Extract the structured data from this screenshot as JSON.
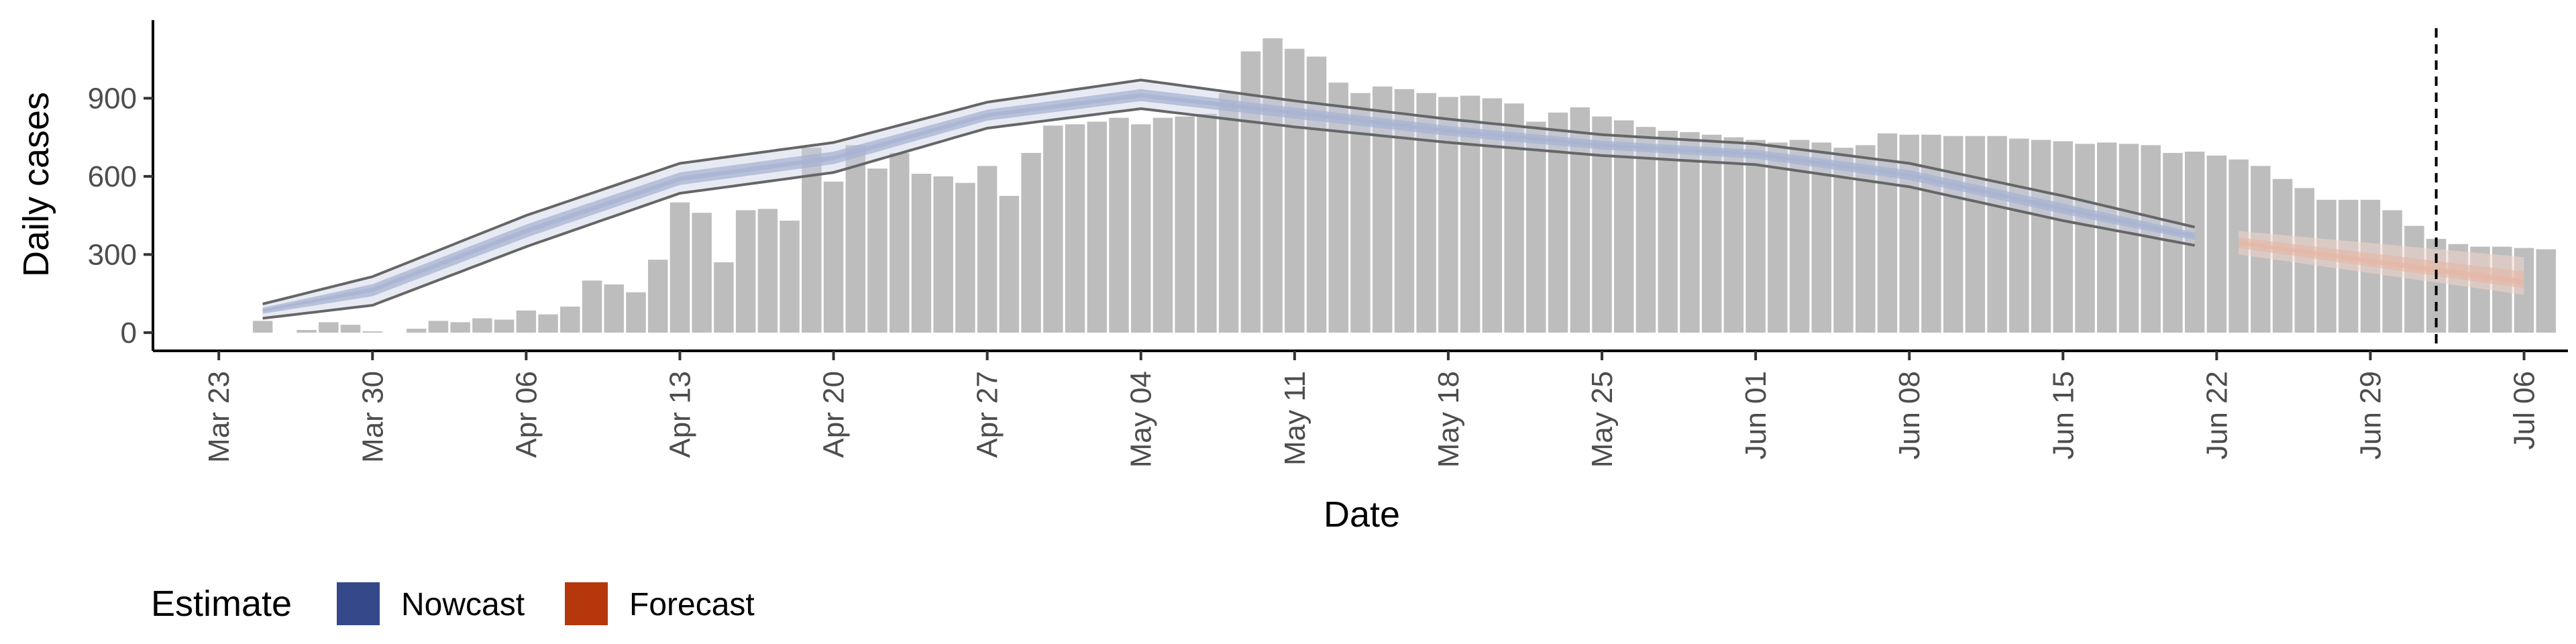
{
  "chart_data": {
    "type": "bar",
    "xlabel": "Date",
    "ylabel": "Daily cases",
    "ylim": [
      -70,
      1200
    ],
    "xlim": [
      "2020-03-20",
      "2020-07-08"
    ],
    "y_ticks": [
      0,
      300,
      600,
      900
    ],
    "x_ticks": [
      {
        "date": "2020-03-23",
        "label": "Mar 23"
      },
      {
        "date": "2020-03-30",
        "label": "Mar 30"
      },
      {
        "date": "2020-04-06",
        "label": "Apr 06"
      },
      {
        "date": "2020-04-13",
        "label": "Apr 13"
      },
      {
        "date": "2020-04-20",
        "label": "Apr 20"
      },
      {
        "date": "2020-04-27",
        "label": "Apr 27"
      },
      {
        "date": "2020-05-04",
        "label": "May 04"
      },
      {
        "date": "2020-05-11",
        "label": "May 11"
      },
      {
        "date": "2020-05-18",
        "label": "May 18"
      },
      {
        "date": "2020-05-25",
        "label": "May 25"
      },
      {
        "date": "2020-06-01",
        "label": "Jun 01"
      },
      {
        "date": "2020-06-08",
        "label": "Jun 08"
      },
      {
        "date": "2020-06-15",
        "label": "Jun 15"
      },
      {
        "date": "2020-06-22",
        "label": "Jun 22"
      },
      {
        "date": "2020-06-29",
        "label": "Jun 29"
      },
      {
        "date": "2020-07-06",
        "label": "Jul 06"
      }
    ],
    "bar_start_date": "2020-03-25",
    "reported_cases": [
      45,
      0,
      10,
      40,
      30,
      5,
      0,
      15,
      45,
      40,
      55,
      50,
      85,
      70,
      100,
      200,
      185,
      155,
      280,
      500,
      460,
      270,
      470,
      475,
      430,
      710,
      580,
      720,
      630,
      690,
      610,
      600,
      575,
      640,
      525,
      690,
      795,
      800,
      810,
      825,
      800,
      825,
      830,
      840,
      920,
      1080,
      1130,
      1090,
      1060,
      960,
      920,
      945,
      935,
      920,
      905,
      910,
      900,
      880,
      810,
      845,
      865,
      830,
      815,
      790,
      775,
      770,
      760,
      750,
      740,
      730,
      740,
      730,
      710,
      720,
      765,
      760,
      760,
      755,
      755,
      755,
      745,
      740,
      735,
      725,
      730,
      725,
      720,
      690,
      695,
      680,
      665,
      640,
      590,
      555,
      510,
      510,
      510,
      470,
      410,
      360,
      340,
      330,
      330,
      325,
      320
    ],
    "nowcast": {
      "start_date": "2020-03-25",
      "end_date": "2020-06-21",
      "knots": [
        {
          "date": "2020-03-25",
          "median": 85,
          "lower": 55,
          "upper": 110
        },
        {
          "date": "2020-03-30",
          "median": 165,
          "lower": 105,
          "upper": 215
        },
        {
          "date": "2020-04-06",
          "median": 390,
          "lower": 330,
          "upper": 450
        },
        {
          "date": "2020-04-13",
          "median": 590,
          "lower": 535,
          "upper": 650
        },
        {
          "date": "2020-04-20",
          "median": 670,
          "lower": 615,
          "upper": 730
        },
        {
          "date": "2020-04-27",
          "median": 835,
          "lower": 785,
          "upper": 885
        },
        {
          "date": "2020-05-04",
          "median": 910,
          "lower": 860,
          "upper": 970
        },
        {
          "date": "2020-05-11",
          "median": 845,
          "lower": 790,
          "upper": 890
        },
        {
          "date": "2020-05-18",
          "median": 775,
          "lower": 730,
          "upper": 820
        },
        {
          "date": "2020-05-25",
          "median": 720,
          "lower": 680,
          "upper": 760
        },
        {
          "date": "2020-06-01",
          "median": 685,
          "lower": 645,
          "upper": 725
        },
        {
          "date": "2020-06-08",
          "median": 605,
          "lower": 560,
          "upper": 650
        },
        {
          "date": "2020-06-15",
          "median": 475,
          "lower": 430,
          "upper": 525
        },
        {
          "date": "2020-06-21",
          "median": 370,
          "lower": 335,
          "upper": 405
        }
      ]
    },
    "forecast": {
      "start_date": "2020-06-23",
      "end_date": "2020-07-06",
      "median_start": 345,
      "median_end": 190,
      "lower_start": 300,
      "lower_end": 145,
      "upper_start": 390,
      "upper_end": 290
    },
    "vline_date": "2020-07-02",
    "legend_title": "Estimate",
    "legend_entries": [
      {
        "label": "Nowcast",
        "color": "#34488a"
      },
      {
        "label": "Forecast",
        "color": "#b5370b"
      }
    ],
    "colors": {
      "bars": "#bdbdbd",
      "nowcast_band": "#c9d0e4",
      "nowcast_inner": "#a8b3d2",
      "nowcast_line": "#666666",
      "forecast_band": "#f2d6cc",
      "forecast_inner": "#e5b6a4",
      "vline": "#000000"
    }
  }
}
